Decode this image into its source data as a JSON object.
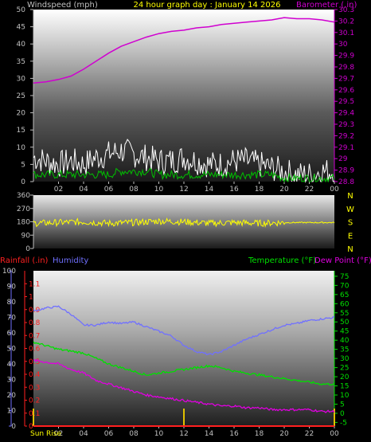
{
  "chart_data": [
    {
      "type": "line",
      "title": "24 hour graph day : January 14 2026",
      "left_axis_label": "Windspeed (mph)",
      "right_axis_label": "Barometer (.in)",
      "left_ylim": [
        0,
        50
      ],
      "left_ticks": [
        "0",
        "5",
        "10",
        "15",
        "20",
        "25",
        "30",
        "35",
        "40",
        "45",
        "50"
      ],
      "right_ylim": [
        28.8,
        30.3
      ],
      "right_ticks": [
        "28.8",
        "28.9",
        "29",
        "29.1",
        "29.2",
        "29.3",
        "29.4",
        "29.5",
        "29.6",
        "29.7",
        "29.8",
        "29.9",
        "30",
        "30.1",
        "30.2",
        "30.3"
      ],
      "x_ticks": [
        "02",
        "04",
        "06",
        "08",
        "10",
        "12",
        "14",
        "16",
        "18",
        "20",
        "22",
        "00"
      ],
      "grid": false,
      "series": [
        {
          "axis": "right",
          "color": "#d000d0",
          "x": [
            0,
            1,
            2,
            3,
            4,
            5,
            6,
            7,
            8,
            9,
            10,
            11,
            12,
            13,
            14,
            15,
            16,
            17,
            18,
            19,
            20,
            21,
            22,
            23,
            24
          ],
          "values": [
            29.66,
            29.67,
            29.69,
            29.72,
            29.78,
            29.85,
            29.92,
            29.98,
            30.02,
            30.06,
            30.09,
            30.11,
            30.12,
            30.14,
            30.15,
            30.17,
            30.18,
            30.19,
            30.2,
            30.21,
            30.23,
            30.22,
            30.22,
            30.21,
            30.19
          ]
        },
        {
          "axis": "left",
          "color": "#ffffff",
          "x": [
            0,
            1,
            2,
            3,
            4,
            5,
            6,
            7,
            8,
            9,
            10,
            11,
            12,
            13,
            14,
            15,
            16,
            17,
            18,
            19,
            20,
            21,
            22,
            23,
            24
          ],
          "values": [
            7,
            6,
            5,
            6,
            5,
            7,
            8,
            9,
            8,
            7,
            6,
            6,
            7,
            6,
            5,
            5,
            6,
            6,
            5,
            4,
            3,
            2,
            2,
            3,
            3
          ]
        },
        {
          "axis": "left",
          "color": "#00c000",
          "x": [
            0,
            1,
            2,
            3,
            4,
            5,
            6,
            7,
            8,
            9,
            10,
            11,
            12,
            13,
            14,
            15,
            16,
            17,
            18,
            19,
            20,
            21,
            22,
            23,
            24
          ],
          "values": [
            2,
            2,
            2,
            2,
            2,
            2,
            2,
            3,
            3,
            3,
            2,
            2,
            2,
            2,
            2,
            2,
            2,
            2,
            2,
            2,
            1,
            1,
            1,
            1,
            1
          ]
        }
      ]
    },
    {
      "type": "line",
      "right_labels": [
        "N",
        "W",
        "S",
        "E",
        "N"
      ],
      "ylim": [
        0,
        360
      ],
      "y_ticks": [
        "0",
        "90",
        "180",
        "270",
        "360"
      ],
      "series": [
        {
          "color": "#ffff00",
          "x": [
            0,
            2,
            4,
            6,
            8,
            10,
            12,
            14,
            16,
            18,
            20,
            22,
            24
          ],
          "values": [
            170,
            175,
            180,
            170,
            175,
            185,
            180,
            170,
            175,
            170,
            175,
            175,
            175
          ]
        }
      ]
    },
    {
      "type": "line",
      "rainfall_label": "Rainfall (.in)",
      "humidity_label": "Humidity",
      "temperature_label": "Temperature (°F)",
      "dewpoint_label": "Dew Point (°F)",
      "humidity_ticks": [
        "0",
        "10",
        "20",
        "30",
        "40",
        "50",
        "60",
        "70",
        "80",
        "90",
        "100"
      ],
      "rainfall_ticks": [
        "0",
        "0.1",
        "0.2",
        "0.3",
        "0.4",
        "0.5",
        "0.6",
        "0.7",
        "0.8",
        "0.9",
        "1",
        "1.1"
      ],
      "temp_ticks": [
        "-5",
        "0",
        "5",
        "10",
        "15",
        "20",
        "25",
        "30",
        "35",
        "40",
        "45",
        "50",
        "55",
        "60",
        "65",
        "70",
        "75"
      ],
      "humidity_ylim": [
        0,
        100
      ],
      "rainfall_ylim": [
        0,
        1.2
      ],
      "temp_ylim": [
        -7,
        78
      ],
      "x_ticks": [
        "02",
        "04",
        "06",
        "08",
        "10",
        "12",
        "14",
        "16",
        "18",
        "20",
        "22",
        "00"
      ],
      "sunrise_label": "Sun Rise",
      "markers": {
        "sunrise": 0,
        "noon": 12,
        "sunset": 24
      },
      "series": [
        {
          "name": "Humidity",
          "axis": "humidity",
          "color": "#7070ff",
          "x": [
            0,
            1,
            2,
            3,
            4,
            5,
            6,
            7,
            8,
            9,
            10,
            11,
            12,
            13,
            14,
            15,
            16,
            17,
            18,
            19,
            20,
            21,
            22,
            23,
            24
          ],
          "values": [
            74,
            76,
            77,
            72,
            65,
            65,
            67,
            66,
            67,
            64,
            61,
            58,
            52,
            48,
            46,
            48,
            52,
            56,
            59,
            62,
            65,
            66,
            68,
            69,
            70
          ]
        },
        {
          "name": "Temperature (°F)",
          "axis": "temp",
          "color": "#00e000",
          "x": [
            0,
            1,
            2,
            3,
            4,
            5,
            6,
            7,
            8,
            9,
            10,
            11,
            12,
            13,
            14,
            15,
            16,
            17,
            18,
            19,
            20,
            21,
            22,
            23,
            24
          ],
          "values": [
            39,
            37,
            35,
            34,
            33,
            30,
            27,
            25,
            23,
            21,
            22,
            23,
            24,
            25,
            26,
            25,
            23,
            22,
            21,
            20,
            19,
            18,
            17,
            16,
            16
          ]
        },
        {
          "name": "Dew Point (°F)",
          "axis": "temp",
          "color": "#e000e0",
          "x": [
            0,
            1,
            2,
            3,
            4,
            5,
            6,
            7,
            8,
            9,
            10,
            11,
            12,
            13,
            14,
            15,
            16,
            17,
            18,
            19,
            20,
            21,
            22,
            23,
            24
          ],
          "values": [
            29,
            28,
            27,
            24,
            22,
            18,
            16,
            14,
            12,
            10,
            9,
            8,
            7,
            6,
            5,
            4,
            4,
            3,
            3,
            2,
            2,
            2,
            2,
            1,
            1
          ]
        },
        {
          "name": "Rainfall (.in)",
          "axis": "rainfall",
          "color": "#ff2020",
          "x": [
            0,
            24
          ],
          "values": [
            0,
            0
          ]
        }
      ]
    }
  ]
}
